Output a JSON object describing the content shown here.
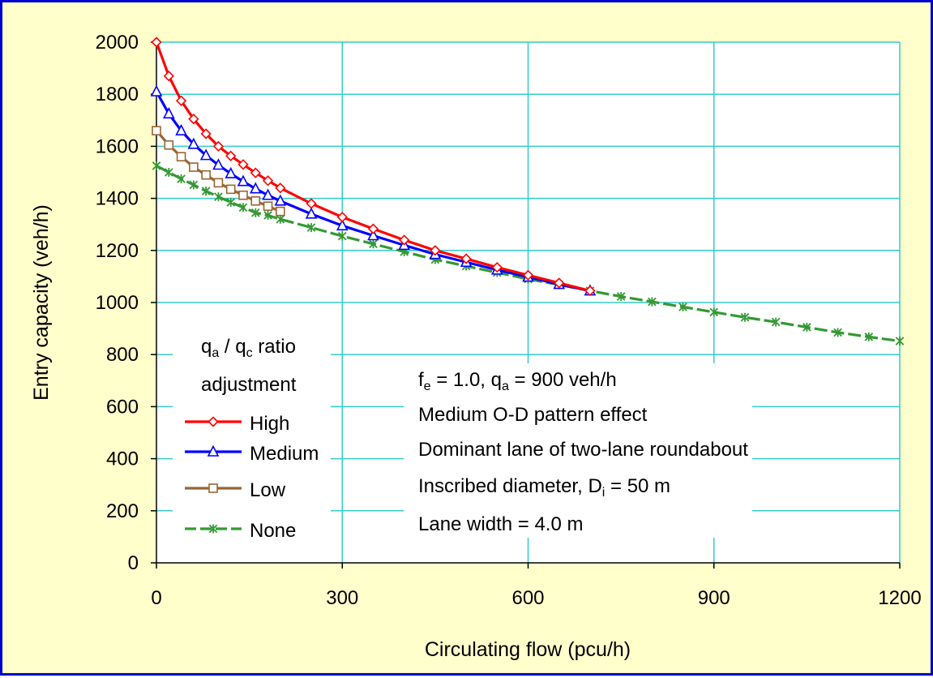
{
  "chart_data": {
    "type": "line",
    "title": "",
    "xlabel": "Circulating flow (pcu/h)",
    "ylabel": "Entry capacity (veh/h)",
    "xlim": [
      0,
      1200
    ],
    "ylim": [
      0,
      2000
    ],
    "x_ticks": [
      0,
      300,
      600,
      900,
      1200
    ],
    "y_ticks": [
      0,
      200,
      400,
      600,
      800,
      1000,
      1200,
      1400,
      1600,
      1800,
      2000
    ],
    "x_tick_labels": [
      "0",
      "300",
      "600",
      "900",
      "1200"
    ],
    "y_tick_labels": [
      "0",
      "200",
      "400",
      "600",
      "800",
      "1000",
      "1200",
      "1400",
      "1600",
      "1800",
      "2000"
    ],
    "grid": true,
    "legend": {
      "title_line1_parts": [
        "q",
        "a",
        " / q",
        "c",
        " ratio"
      ],
      "title_line2": "adjustment",
      "placement": "lower-left"
    },
    "series": [
      {
        "name": "High",
        "color": "#ff0000",
        "marker": "diamond",
        "dashed": false,
        "x": [
          0,
          20,
          40,
          60,
          80,
          100,
          120,
          140,
          160,
          180,
          200,
          250,
          300,
          350,
          400,
          450,
          500,
          550,
          600,
          650,
          700
        ],
        "y": [
          2000,
          1870,
          1775,
          1705,
          1648,
          1600,
          1563,
          1530,
          1498,
          1468,
          1440,
          1380,
          1328,
          1283,
          1240,
          1200,
          1168,
          1135,
          1105,
          1075,
          1045
        ]
      },
      {
        "name": "Medium",
        "color": "#0000ff",
        "marker": "triangle",
        "dashed": false,
        "x": [
          0,
          20,
          40,
          60,
          80,
          100,
          120,
          140,
          160,
          180,
          200,
          250,
          300,
          350,
          400,
          450,
          500,
          550,
          600,
          650,
          700
        ],
        "y": [
          1810,
          1725,
          1660,
          1608,
          1565,
          1528,
          1495,
          1465,
          1437,
          1412,
          1390,
          1340,
          1295,
          1257,
          1220,
          1185,
          1155,
          1125,
          1098,
          1070,
          1045
        ]
      },
      {
        "name": "Low",
        "color": "#996633",
        "marker": "square",
        "dashed": false,
        "x": [
          0,
          20,
          40,
          60,
          80,
          100,
          120,
          140,
          160,
          180,
          200
        ],
        "y": [
          1660,
          1605,
          1560,
          1520,
          1490,
          1460,
          1435,
          1412,
          1390,
          1370,
          1350
        ]
      },
      {
        "name": "None",
        "color": "#339933",
        "marker": "star",
        "dashed": true,
        "x": [
          0,
          20,
          40,
          60,
          80,
          100,
          120,
          140,
          160,
          180,
          200,
          250,
          300,
          350,
          400,
          450,
          500,
          550,
          600,
          650,
          700,
          750,
          800,
          850,
          900,
          950,
          1000,
          1050,
          1100,
          1150,
          1200
        ],
        "y": [
          1525,
          1500,
          1475,
          1452,
          1428,
          1406,
          1385,
          1365,
          1345,
          1335,
          1320,
          1288,
          1255,
          1225,
          1195,
          1165,
          1140,
          1115,
          1090,
          1068,
          1045,
          1023,
          1003,
          983,
          963,
          943,
          925,
          905,
          885,
          868,
          852
        ]
      }
    ],
    "annotations": [
      {
        "parts": [
          "f",
          "e",
          " = 1.0, q",
          "a",
          " = 900 veh/h"
        ],
        "color": "#0000ff"
      },
      {
        "parts": [
          "Medium O-D pattern effect"
        ],
        "color": "#0000ff"
      },
      {
        "parts": [
          "Dominant lane of two-lane roundabout"
        ],
        "color": "#000000"
      },
      {
        "parts": [
          "Inscribed diameter, D",
          "i",
          " = 50 m"
        ],
        "color": "#000000"
      },
      {
        "parts": [
          "Lane width = 4.0 m"
        ],
        "color": "#000000"
      }
    ],
    "colors": {
      "frame_border": "#0000cc",
      "frame_background": "#ffffcc",
      "plot_background": "#ffffff",
      "gridline": "#33cccc",
      "axis": "#000000"
    }
  }
}
